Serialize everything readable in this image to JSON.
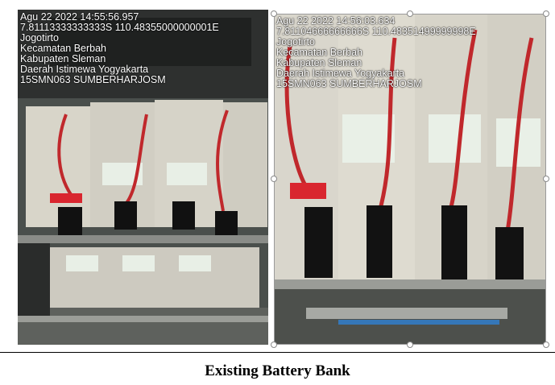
{
  "photos": [
    {
      "overlay_lines": [
        "Agu 22 2022  14:55:56.957",
        "7.81113333333333S 110.48355000000001E",
        "Jogotirto",
        "Kecamatan Berbah",
        "Kabupaten Sleman",
        "Daerah Istimewa Yogyakarta",
        "15SMN063 SUMBERHARJOSM"
      ]
    },
    {
      "overlay_lines": [
        "Agu 22 2022  14:56:03.634",
        "7.81104666666666S 110.48351499999998E",
        "Jogotirto",
        "Kecamatan Berbah",
        "Kabupaten Sleman",
        "Daerah Istimewa Yogyakarta",
        "15SMN063 SUMBERHARJOSM"
      ]
    }
  ],
  "caption": "Existing Battery Bank"
}
